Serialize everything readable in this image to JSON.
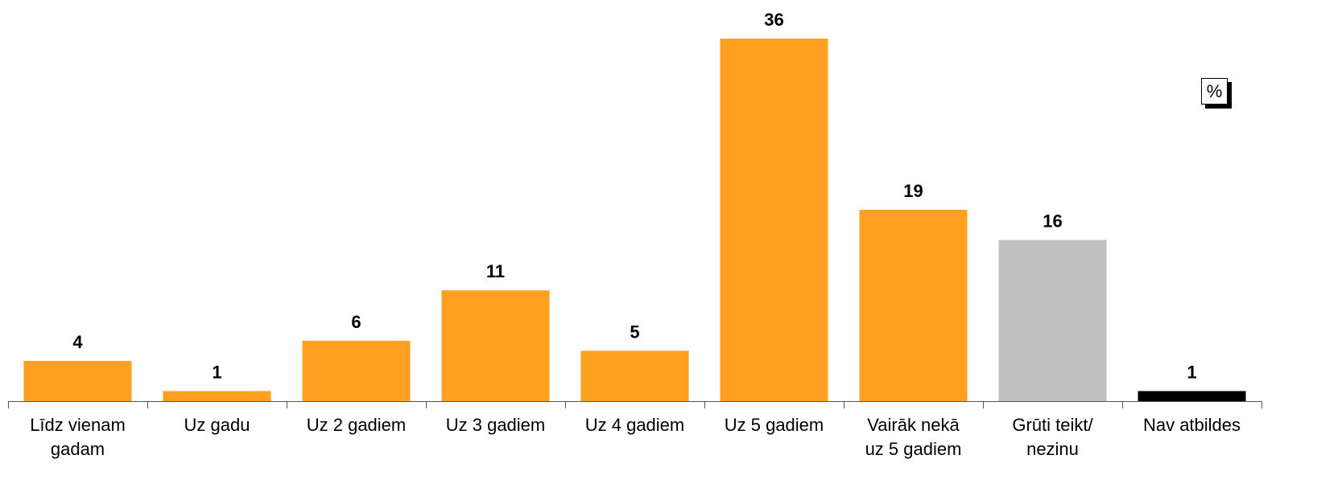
{
  "chart_data": {
    "type": "bar",
    "categories": [
      "Līdz vienam\ngadam",
      "Uz gadu",
      "Uz 2 gadiem",
      "Uz 3 gadiem",
      "Uz 4 gadiem",
      "Uz 5 gadiem",
      "Vairāk nekā\nuz 5 gadiem",
      "Grūti teikt/\nnezinu",
      "Nav atbildes"
    ],
    "values": [
      4,
      1,
      6,
      11,
      5,
      36,
      19,
      16,
      1
    ],
    "colors": [
      "#ffa020",
      "#ffa020",
      "#ffa020",
      "#ffa020",
      "#ffa020",
      "#ffa020",
      "#ffa020",
      "#c0c0c0",
      "#000000"
    ],
    "ylim": [
      0,
      36
    ],
    "annotation": "%"
  }
}
